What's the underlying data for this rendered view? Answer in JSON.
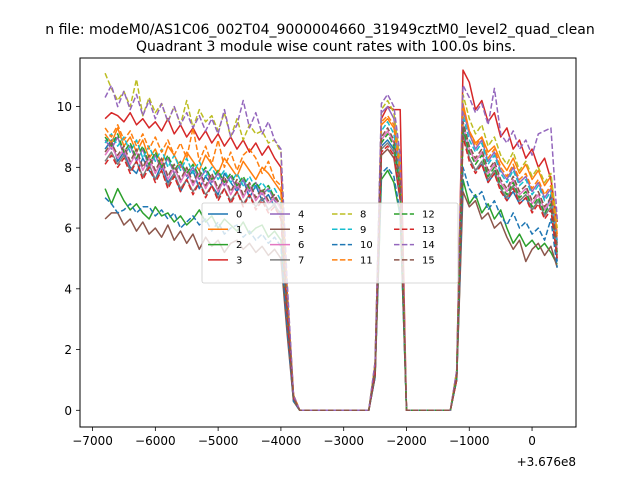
{
  "header": {
    "suptitle": "n file: modeM0/AS1C06_002T04_9000004660_31949cztM0_level2_quad_clean",
    "offset_label": "+3.676e8"
  },
  "chart_data": {
    "type": "line",
    "title": "Quadrant 3 module wise count rates with 100.0s bins.",
    "xlabel": "",
    "ylabel": "",
    "xlim": [
      -7200,
      700
    ],
    "ylim": [
      -0.55,
      11.6
    ],
    "x_offset": 367600000,
    "xticks": [
      -7000,
      -6000,
      -5000,
      -4000,
      -3000,
      -2000,
      -1000,
      0
    ],
    "xtick_labels": [
      "−7000",
      "−6000",
      "−5000",
      "−4000",
      "−3000",
      "−2000",
      "−1000",
      "0"
    ],
    "yticks": [
      0,
      2,
      4,
      6,
      8,
      10
    ],
    "ytick_labels": [
      "0",
      "2",
      "4",
      "6",
      "8",
      "10"
    ],
    "grid": false,
    "legend": {
      "placement": "center",
      "ncol": 4
    },
    "x": [
      -6800,
      -6700,
      -6600,
      -6500,
      -6400,
      -6300,
      -6200,
      -6100,
      -6000,
      -5900,
      -5800,
      -5700,
      -5600,
      -5500,
      -5400,
      -5300,
      -5200,
      -5100,
      -5000,
      -4900,
      -4800,
      -4700,
      -4600,
      -4500,
      -4400,
      -4300,
      -4200,
      -4100,
      -4000,
      -3900,
      -3800,
      -3700,
      -3600,
      -2600,
      -2500,
      -2400,
      -2300,
      -2200,
      -2100,
      -2000,
      -1300,
      -1200,
      -1100,
      -1000,
      -900,
      -800,
      -700,
      -600,
      -500,
      -400,
      -300,
      -200,
      -100,
      0,
      100,
      200,
      300,
      400
    ],
    "series": [
      {
        "name": "0",
        "color": "#1f77b4",
        "dash": "solid",
        "values": [
          8.6,
          8.9,
          8.2,
          8.5,
          8.0,
          7.8,
          8.3,
          7.9,
          7.6,
          8.1,
          7.5,
          7.8,
          7.2,
          7.6,
          7.9,
          7.3,
          7.7,
          7.4,
          7.1,
          7.8,
          7.5,
          7.2,
          7.6,
          7.0,
          7.4,
          6.9,
          7.1,
          6.7,
          6.5,
          3.2,
          0.4,
          0,
          0,
          0,
          1.3,
          8.7,
          8.9,
          8.6,
          7.2,
          0,
          0,
          1.1,
          9.2,
          8.3,
          7.9,
          8.1,
          7.5,
          7.8,
          7.3,
          6.9,
          7.2,
          6.8,
          7.0,
          6.6,
          6.9,
          6.4,
          7.1,
          4.9
        ]
      },
      {
        "name": "1",
        "color": "#ff7f0e",
        "dash": "solid",
        "values": [
          9.1,
          8.8,
          9.3,
          8.7,
          9.0,
          8.5,
          8.9,
          8.3,
          8.6,
          8.1,
          8.7,
          8.4,
          8.0,
          8.5,
          8.2,
          7.9,
          8.4,
          8.1,
          7.8,
          8.3,
          8.0,
          7.7,
          8.2,
          7.9,
          7.6,
          8.0,
          7.8,
          7.5,
          7.2,
          3.5,
          0.5,
          0,
          0,
          0,
          1.4,
          9.4,
          9.6,
          9.3,
          7.8,
          0,
          0,
          1.2,
          10.1,
          9.2,
          8.8,
          9.0,
          8.5,
          8.7,
          8.2,
          7.9,
          8.3,
          7.8,
          8.1,
          7.6,
          7.9,
          7.4,
          7.7,
          5.8
        ]
      },
      {
        "name": "2",
        "color": "#2ca02c",
        "dash": "solid",
        "values": [
          7.3,
          6.8,
          7.3,
          6.9,
          6.6,
          6.8,
          6.5,
          6.3,
          6.7,
          6.4,
          6.5,
          6.2,
          6.4,
          6.1,
          6.3,
          6.6,
          6.2,
          6.4,
          6.0,
          6.3,
          6.1,
          5.9,
          6.2,
          5.8,
          6.0,
          6.1,
          5.7,
          5.9,
          5.6,
          2.8,
          0.3,
          0,
          0,
          0,
          1.1,
          7.6,
          7.9,
          7.5,
          6.4,
          0,
          0,
          1.0,
          7.6,
          6.8,
          7.1,
          6.5,
          6.8,
          6.3,
          6.6,
          6.0,
          5.5,
          5.8,
          5.4,
          5.6,
          5.3,
          5.5,
          5.2,
          4.8
        ]
      },
      {
        "name": "3",
        "color": "#d62728",
        "dash": "solid",
        "values": [
          9.6,
          9.8,
          9.7,
          9.5,
          9.8,
          9.4,
          9.6,
          9.3,
          9.5,
          9.2,
          9.6,
          9.1,
          9.4,
          9.0,
          9.3,
          8.9,
          9.2,
          8.8,
          9.1,
          8.7,
          9.0,
          8.6,
          8.9,
          8.5,
          8.8,
          8.4,
          8.7,
          8.3,
          8.0,
          3.9,
          0.5,
          0,
          0,
          0,
          1.5,
          9.6,
          10.0,
          9.9,
          9.9,
          0,
          0,
          1.3,
          11.2,
          10.8,
          9.9,
          10.2,
          9.5,
          9.8,
          9.0,
          9.3,
          8.6,
          8.9,
          8.3,
          8.6,
          8.0,
          8.3,
          7.6,
          6.2
        ]
      },
      {
        "name": "4",
        "color": "#9467bd",
        "dash": "solid",
        "values": [
          8.9,
          8.6,
          9.0,
          8.4,
          8.7,
          8.2,
          8.6,
          8.0,
          8.4,
          7.9,
          8.3,
          7.8,
          8.1,
          7.7,
          8.0,
          7.6,
          7.9,
          7.5,
          7.8,
          7.4,
          7.7,
          7.3,
          7.6,
          7.2,
          7.5,
          7.1,
          7.3,
          6.9,
          6.7,
          3.3,
          0.4,
          0,
          0,
          0,
          1.4,
          9.8,
          10.0,
          9.6,
          7.9,
          0,
          0,
          1.2,
          9.9,
          9.1,
          8.6,
          8.9,
          8.2,
          8.5,
          7.9,
          7.6,
          8.0,
          7.5,
          7.7,
          7.2,
          7.5,
          7.0,
          7.3,
          5.6
        ]
      },
      {
        "name": "5",
        "color": "#8c564b",
        "dash": "solid",
        "values": [
          6.3,
          6.5,
          6.5,
          6.1,
          6.3,
          5.9,
          6.2,
          5.8,
          6.0,
          5.7,
          6.1,
          5.6,
          5.9,
          5.5,
          5.8,
          5.3,
          5.7,
          5.4,
          5.6,
          5.2,
          5.5,
          5.6,
          5.3,
          5.5,
          5.2,
          5.4,
          5.1,
          5.3,
          5.0,
          2.5,
          0.3,
          0,
          0,
          0,
          1.1,
          8.4,
          8.6,
          8.3,
          6.9,
          0,
          0,
          1.0,
          7.2,
          6.7,
          6.9,
          6.3,
          6.5,
          6.0,
          6.2,
          5.7,
          5.3,
          5.6,
          4.9,
          5.3,
          5.5,
          5.1,
          5.4,
          4.7
        ]
      },
      {
        "name": "6",
        "color": "#e377c2",
        "dash": "solid",
        "values": [
          8.4,
          8.7,
          8.3,
          8.6,
          8.1,
          8.5,
          7.9,
          8.3,
          7.8,
          8.2,
          7.6,
          8.0,
          7.5,
          7.9,
          7.4,
          7.8,
          7.3,
          7.7,
          7.2,
          7.6,
          7.1,
          7.5,
          7.0,
          7.4,
          6.9,
          7.2,
          6.8,
          7.0,
          6.6,
          3.2,
          0.4,
          0,
          0,
          0,
          1.3,
          8.9,
          9.2,
          8.8,
          7.4,
          0,
          0,
          1.1,
          9.4,
          8.6,
          8.2,
          8.5,
          7.8,
          8.1,
          7.5,
          7.2,
          7.6,
          7.1,
          7.3,
          6.8,
          7.1,
          6.6,
          6.9,
          5.3
        ]
      },
      {
        "name": "7",
        "color": "#7f7f7f",
        "dash": "solid",
        "values": [
          8.2,
          8.5,
          8.1,
          8.4,
          7.9,
          8.2,
          7.7,
          8.1,
          7.6,
          7.9,
          7.4,
          7.8,
          7.3,
          7.6,
          7.2,
          7.5,
          7.1,
          7.4,
          7.0,
          7.3,
          6.9,
          7.2,
          6.8,
          7.1,
          6.7,
          7.0,
          6.6,
          6.8,
          6.4,
          3.1,
          0.4,
          0,
          0,
          0,
          1.2,
          8.6,
          8.8,
          8.5,
          7.1,
          0,
          0,
          1.1,
          9.1,
          8.3,
          7.9,
          8.2,
          7.6,
          7.9,
          7.3,
          7.0,
          7.4,
          6.9,
          7.1,
          6.6,
          6.9,
          6.4,
          6.7,
          5.1
        ]
      },
      {
        "name": "8",
        "color": "#bcbd22",
        "dash": "dashed",
        "values": [
          11.1,
          10.6,
          10.2,
          10.5,
          10.0,
          10.9,
          9.7,
          10.3,
          9.8,
          10.1,
          9.5,
          10.0,
          9.4,
          10.2,
          9.3,
          9.9,
          9.5,
          9.7,
          9.2,
          9.8,
          9.0,
          9.6,
          8.9,
          9.4,
          9.1,
          9.2,
          8.8,
          8.9,
          8.5,
          4.1,
          0.5,
          0,
          0,
          0,
          1.6,
          9.9,
          10.2,
          9.8,
          8.2,
          0,
          0,
          1.3,
          10.4,
          9.6,
          9.1,
          9.4,
          8.7,
          9.0,
          8.4,
          8.1,
          8.5,
          7.9,
          8.2,
          7.7,
          8.0,
          7.5,
          7.8,
          6.0
        ]
      },
      {
        "name": "9",
        "color": "#17becf",
        "dash": "dashed",
        "values": [
          8.8,
          9.1,
          8.7,
          9.0,
          8.5,
          8.9,
          8.3,
          8.7,
          8.2,
          8.6,
          8.0,
          8.4,
          7.9,
          8.3,
          7.8,
          8.2,
          7.7,
          8.0,
          7.6,
          7.9,
          7.5,
          7.8,
          7.4,
          7.7,
          7.3,
          7.5,
          7.2,
          7.3,
          6.9,
          3.4,
          0.4,
          0,
          0,
          0,
          1.4,
          9.2,
          9.5,
          9.1,
          7.6,
          0,
          0,
          1.2,
          9.7,
          8.9,
          8.5,
          8.8,
          8.1,
          8.4,
          7.8,
          7.5,
          7.9,
          7.4,
          7.6,
          7.1,
          7.4,
          6.9,
          7.2,
          5.5
        ]
      },
      {
        "name": "10",
        "color": "#1f77b4",
        "dash": "dashed",
        "values": [
          7.0,
          6.8,
          6.5,
          6.6,
          6.8,
          6.5,
          6.7,
          6.7,
          6.4,
          6.6,
          6.3,
          6.5,
          6.0,
          6.2,
          6.4,
          6.1,
          6.3,
          5.9,
          6.2,
          5.8,
          6.0,
          6.1,
          5.7,
          5.9,
          5.6,
          5.8,
          5.5,
          5.7,
          5.4,
          2.7,
          0.3,
          0,
          0,
          0,
          1.1,
          7.8,
          8.0,
          7.7,
          6.5,
          0,
          0,
          1.0,
          8.0,
          7.3,
          7.0,
          7.2,
          6.6,
          6.9,
          6.4,
          6.1,
          6.5,
          6.0,
          6.2,
          5.8,
          6.0,
          5.6,
          6.3,
          4.7
        ]
      },
      {
        "name": "11",
        "color": "#ff7f0e",
        "dash": "dashed",
        "values": [
          9.3,
          9.0,
          9.4,
          8.9,
          9.2,
          8.7,
          9.1,
          8.6,
          9.0,
          8.5,
          8.9,
          8.4,
          8.8,
          8.3,
          9.3,
          8.2,
          8.7,
          8.1,
          8.9,
          8.0,
          8.5,
          7.9,
          8.4,
          8.6,
          8.3,
          7.8,
          8.2,
          7.6,
          7.4,
          3.6,
          0.5,
          0,
          0,
          0,
          1.5,
          9.5,
          9.7,
          9.4,
          7.9,
          0,
          0,
          1.2,
          10.0,
          9.2,
          8.7,
          9.0,
          8.3,
          8.6,
          8.0,
          7.7,
          8.1,
          7.6,
          7.8,
          7.3,
          7.6,
          7.1,
          7.4,
          5.7
        ]
      },
      {
        "name": "12",
        "color": "#2ca02c",
        "dash": "dashed",
        "values": [
          9.0,
          8.7,
          9.1,
          8.5,
          8.8,
          8.3,
          8.7,
          8.1,
          8.5,
          8.0,
          8.4,
          7.9,
          8.2,
          7.8,
          8.1,
          7.7,
          8.0,
          7.6,
          7.9,
          7.5,
          7.8,
          7.4,
          7.7,
          7.3,
          7.5,
          7.2,
          7.4,
          7.0,
          6.8,
          3.3,
          0.4,
          0,
          0,
          0,
          1.4,
          8.8,
          9.1,
          8.7,
          7.3,
          0,
          0,
          1.1,
          9.3,
          8.5,
          8.1,
          8.4,
          7.7,
          8.0,
          7.4,
          7.1,
          7.5,
          7.0,
          7.2,
          6.7,
          7.0,
          6.5,
          6.8,
          5.2
        ]
      },
      {
        "name": "13",
        "color": "#d62728",
        "dash": "dashed",
        "values": [
          8.1,
          8.4,
          8.0,
          8.3,
          7.8,
          8.2,
          7.6,
          8.0,
          7.5,
          7.9,
          7.3,
          7.7,
          7.2,
          7.6,
          7.1,
          7.5,
          7.0,
          7.4,
          6.9,
          7.3,
          6.8,
          7.2,
          6.7,
          7.1,
          6.6,
          6.9,
          6.5,
          6.7,
          6.3,
          3.1,
          0.4,
          0,
          0,
          0,
          1.2,
          8.5,
          8.7,
          8.4,
          7.0,
          0,
          0,
          1.0,
          9.0,
          8.2,
          7.8,
          8.1,
          7.5,
          7.8,
          7.2,
          6.9,
          7.3,
          6.8,
          7.0,
          6.5,
          6.8,
          6.3,
          6.6,
          5.0
        ]
      },
      {
        "name": "14",
        "color": "#9467bd",
        "dash": "dashed",
        "values": [
          10.3,
          10.7,
          10.0,
          10.5,
          9.9,
          10.4,
          9.7,
          10.2,
          9.6,
          10.1,
          9.5,
          10.0,
          9.4,
          9.8,
          9.3,
          9.7,
          9.2,
          9.6,
          9.1,
          9.9,
          9.0,
          9.4,
          10.2,
          9.3,
          9.8,
          9.1,
          9.5,
          8.9,
          8.6,
          4.2,
          0.5,
          0,
          0,
          0,
          1.6,
          10.1,
          10.4,
          10.0,
          8.4,
          0,
          0,
          1.3,
          10.7,
          10.3,
          9.8,
          10.1,
          9.4,
          10.6,
          9.1,
          8.8,
          9.2,
          8.6,
          8.9,
          8.4,
          9.1,
          9.2,
          9.3,
          6.3
        ]
      },
      {
        "name": "15",
        "color": "#8c564b",
        "dash": "dashed",
        "values": [
          8.5,
          8.8,
          8.4,
          8.7,
          8.2,
          8.6,
          8.0,
          8.4,
          7.9,
          8.3,
          7.7,
          8.1,
          7.6,
          8.0,
          7.5,
          7.9,
          7.4,
          7.8,
          7.3,
          7.7,
          7.2,
          7.6,
          7.1,
          7.5,
          7.0,
          7.3,
          6.9,
          7.1,
          6.7,
          3.3,
          0.4,
          0,
          0,
          0,
          1.3,
          9.0,
          9.3,
          8.9,
          7.5,
          0,
          0,
          1.1,
          9.5,
          8.7,
          8.3,
          8.6,
          7.9,
          8.2,
          7.6,
          7.3,
          7.7,
          7.2,
          7.4,
          6.9,
          7.2,
          6.7,
          7.0,
          5.4
        ]
      }
    ]
  }
}
